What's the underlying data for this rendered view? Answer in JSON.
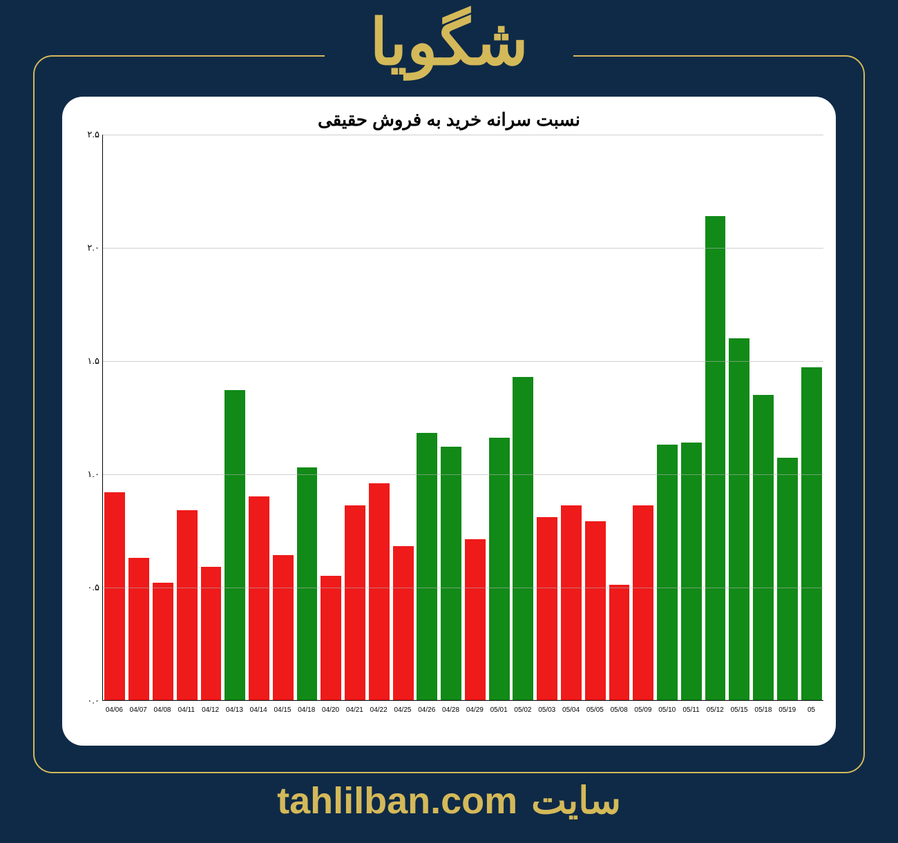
{
  "header": {
    "title": "شگویا",
    "title_color": "#d4b959",
    "title_fontsize": 92
  },
  "frame": {
    "border_color": "#d4b959",
    "border_radius": 28,
    "background_color": "#0f2a47",
    "title_gap_width": 360
  },
  "chart": {
    "type": "bar",
    "title": "نسبت سرانه خرید به فروش حقیقی",
    "title_fontsize": 26,
    "title_color": "#000000",
    "background_color": "#ffffff",
    "card_radius": 30,
    "ylim": [
      0.0,
      2.5
    ],
    "ytick_step": 0.5,
    "ytick_labels": [
      "۰.۰",
      "۰.۵",
      "۱.۰",
      "۱.۵",
      "۲.۰",
      "۲.۵"
    ],
    "ytick_values": [
      0.0,
      0.5,
      1.0,
      1.5,
      2.0,
      2.5
    ],
    "grid_color": "#b0b0b0",
    "axis_color": "#000000",
    "bar_width": 0.86,
    "colors": {
      "up": "#118a17",
      "down": "#ef1a1a"
    },
    "categories": [
      "04/06",
      "04/07",
      "04/08",
      "04/11",
      "04/12",
      "04/13",
      "04/14",
      "04/15",
      "04/18",
      "04/20",
      "04/21",
      "04/22",
      "04/25",
      "04/26",
      "04/28",
      "04/29",
      "05/01",
      "05/02",
      "05/03",
      "05/04",
      "05/05",
      "05/08",
      "05/09",
      "05/10",
      "05/11",
      "05/12",
      "05/15",
      "05/18",
      "05/19",
      "05"
    ],
    "values": [
      0.92,
      0.63,
      0.52,
      0.84,
      0.59,
      1.37,
      0.9,
      0.64,
      1.03,
      0.55,
      0.86,
      0.96,
      0.68,
      1.18,
      1.12,
      0.71,
      1.16,
      1.43,
      0.81,
      0.86,
      0.79,
      0.51,
      0.86,
      1.13,
      1.14,
      2.14,
      1.6,
      1.35,
      1.07,
      1.47
    ],
    "bar_colors": [
      "down",
      "down",
      "down",
      "down",
      "down",
      "up",
      "down",
      "down",
      "up",
      "down",
      "down",
      "down",
      "down",
      "up",
      "up",
      "down",
      "up",
      "up",
      "down",
      "down",
      "down",
      "down",
      "down",
      "up",
      "up",
      "up",
      "up",
      "up",
      "up",
      "up"
    ],
    "xlabel_fontsize": 10,
    "ylabel_fontsize": 13
  },
  "footer": {
    "label": "سایت",
    "domain": "tahlilban.com",
    "color": "#d4b959",
    "fontsize": 54
  }
}
